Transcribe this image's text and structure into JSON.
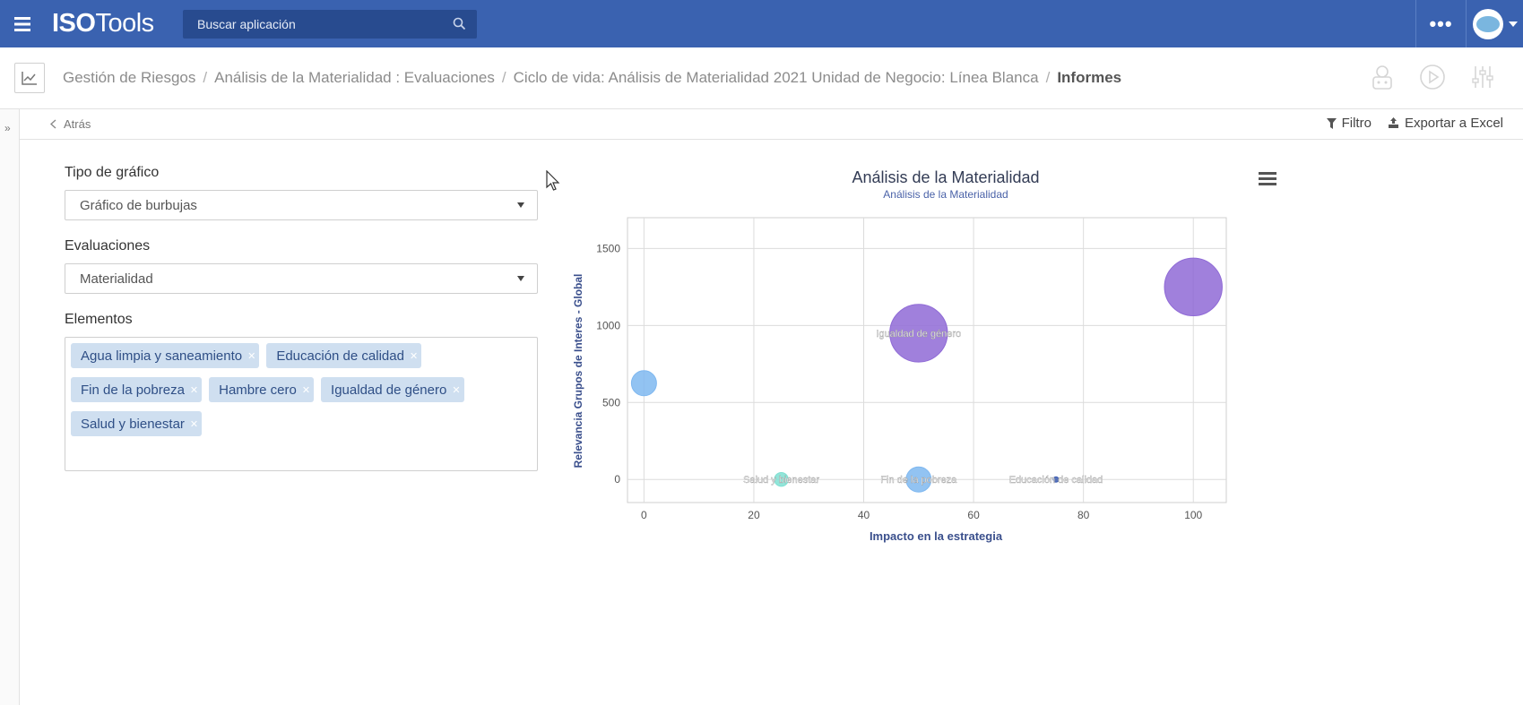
{
  "app": {
    "logo_bold": "ISO",
    "logo_light": "Tools",
    "search_placeholder": "Buscar aplicación",
    "more_label": "•••"
  },
  "breadcrumb": {
    "items": [
      "Gestión de Riesgos",
      "Análisis de la Materialidad : Evaluaciones",
      "Ciclo de vida: Análisis de Materialidad 2021 Unidad de Negocio: Línea Blanca"
    ],
    "current": "Informes",
    "separator": "/"
  },
  "toolbar": {
    "back_label": "Atrás",
    "filter_label": "Filtro",
    "export_label": "Exportar a Excel"
  },
  "form": {
    "chart_type_label": "Tipo de gráfico",
    "chart_type_value": "Gráfico de burbujas",
    "evaluations_label": "Evaluaciones",
    "evaluations_value": "Materialidad",
    "elements_label": "Elementos",
    "elements": [
      "Agua limpia y saneamiento",
      "Educación de calidad",
      "Fin de la pobreza",
      "Hambre cero",
      "Igualdad de género",
      "Salud y bienestar"
    ]
  },
  "chart_data": {
    "type": "scatter",
    "title": "Análisis de la Materialidad",
    "subtitle": "Análisis de la Materialidad",
    "xlabel": "Impacto en la estrategia",
    "ylabel": "Relevancia Grupos de Interes - Global",
    "xlim": [
      -3,
      106
    ],
    "ylim": [
      -150,
      1700
    ],
    "x_ticks": [
      0,
      20,
      40,
      60,
      80,
      100
    ],
    "y_ticks": [
      0,
      500,
      1000,
      1500
    ],
    "grid": true,
    "points": [
      {
        "label": "",
        "x": 0,
        "y": 625,
        "size": 1,
        "color": "#7fb8f0"
      },
      {
        "label": "Igualdad de género",
        "x": 50,
        "y": 950,
        "size": 2.3,
        "color": "#8f6ad6"
      },
      {
        "label": "",
        "x": 100,
        "y": 1250,
        "size": 2.3,
        "color": "#8f6ad6"
      },
      {
        "label": "Salud y bienestar",
        "x": 25,
        "y": 0,
        "size": 0.55,
        "color": "#7fe0d2"
      },
      {
        "label": "Fin de la pobreza",
        "x": 50,
        "y": 0,
        "size": 1,
        "color": "#7fb8f0"
      },
      {
        "label": "Educación de calidad",
        "x": 75,
        "y": 0,
        "size": 0.2,
        "color": "#3b5bb0"
      }
    ]
  },
  "colors": {
    "topbar": "#3a62b0",
    "search_bg": "#284b8f",
    "tag_bg": "#cfdff0"
  }
}
